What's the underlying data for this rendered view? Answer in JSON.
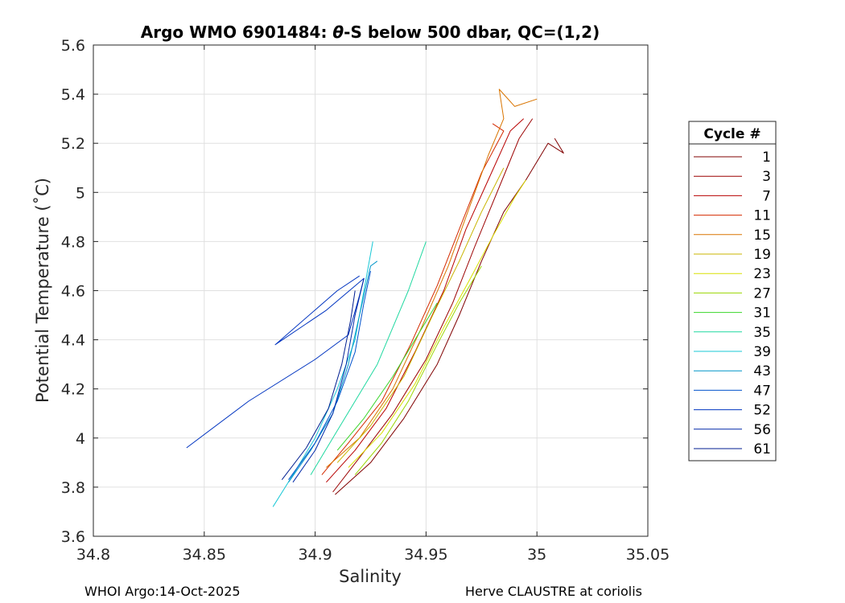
{
  "chart_data": {
    "type": "line",
    "title": "Argo WMO 6901484: θ-S below 500 dbar,  QC=(1,2)",
    "title_parts": {
      "prefix": "Argo WMO 6901484: ",
      "theta": "θ",
      "suffix": "-S below 500 dbar,  QC=(1,2)"
    },
    "xlabel": "Salinity",
    "ylabel": "Potential Temperature (˚C)",
    "xlim": [
      34.8,
      35.05
    ],
    "ylim": [
      3.6,
      5.6
    ],
    "xticks": [
      "34.8",
      "34.85",
      "34.9",
      "34.95",
      "35",
      "35.05"
    ],
    "xtick_values": [
      34.8,
      34.85,
      34.9,
      34.95,
      35.0,
      35.05
    ],
    "yticks": [
      "3.6",
      "3.8",
      "4",
      "4.2",
      "4.4",
      "4.6",
      "4.8",
      "5",
      "5.2",
      "5.4",
      "5.6"
    ],
    "ytick_values": [
      3.6,
      3.8,
      4.0,
      4.2,
      4.4,
      4.6,
      4.8,
      5.0,
      5.2,
      5.4,
      5.6
    ],
    "grid": true,
    "legend_title": "Cycle #",
    "legend_position": "outside-right",
    "series": [
      {
        "name": "1",
        "color": "#800000",
        "points": [
          [
            34.909,
            3.77
          ],
          [
            34.925,
            3.9
          ],
          [
            34.94,
            4.08
          ],
          [
            34.955,
            4.3
          ],
          [
            34.965,
            4.5
          ],
          [
            34.975,
            4.72
          ],
          [
            34.985,
            4.92
          ],
          [
            34.995,
            5.05
          ],
          [
            35.005,
            5.2
          ],
          [
            35.012,
            5.16
          ],
          [
            35.008,
            5.22
          ]
        ]
      },
      {
        "name": "3",
        "color": "#9b0000",
        "points": [
          [
            34.908,
            3.78
          ],
          [
            34.92,
            3.92
          ],
          [
            34.935,
            4.1
          ],
          [
            34.95,
            4.32
          ],
          [
            34.962,
            4.55
          ],
          [
            34.972,
            4.78
          ],
          [
            34.982,
            5.0
          ],
          [
            34.992,
            5.22
          ],
          [
            34.998,
            5.3
          ]
        ]
      },
      {
        "name": "7",
        "color": "#b80000",
        "points": [
          [
            34.905,
            3.82
          ],
          [
            34.918,
            3.95
          ],
          [
            34.932,
            4.12
          ],
          [
            34.945,
            4.35
          ],
          [
            34.958,
            4.6
          ],
          [
            34.968,
            4.85
          ],
          [
            34.978,
            5.05
          ],
          [
            34.988,
            5.25
          ],
          [
            34.994,
            5.3
          ]
        ]
      },
      {
        "name": "11",
        "color": "#d42a00",
        "points": [
          [
            34.903,
            3.85
          ],
          [
            34.915,
            3.98
          ],
          [
            34.93,
            4.15
          ],
          [
            34.943,
            4.38
          ],
          [
            34.955,
            4.62
          ],
          [
            34.965,
            4.85
          ],
          [
            34.975,
            5.08
          ],
          [
            34.985,
            5.25
          ],
          [
            34.98,
            5.28
          ]
        ]
      },
      {
        "name": "15",
        "color": "#d97400",
        "points": [
          [
            34.905,
            3.88
          ],
          [
            34.92,
            4.0
          ],
          [
            34.935,
            4.2
          ],
          [
            34.948,
            4.45
          ],
          [
            34.96,
            4.7
          ],
          [
            34.97,
            4.95
          ],
          [
            34.978,
            5.15
          ],
          [
            34.985,
            5.3
          ],
          [
            34.983,
            5.42
          ],
          [
            34.99,
            5.35
          ],
          [
            35.0,
            5.38
          ]
        ]
      },
      {
        "name": "19",
        "color": "#c9b400",
        "points": [
          [
            34.91,
            3.9
          ],
          [
            34.925,
            4.05
          ],
          [
            34.94,
            4.25
          ],
          [
            34.953,
            4.5
          ],
          [
            34.965,
            4.72
          ],
          [
            34.975,
            4.92
          ],
          [
            34.985,
            5.1
          ]
        ]
      },
      {
        "name": "23",
        "color": "#d8e000",
        "points": [
          [
            34.915,
            3.88
          ],
          [
            34.93,
            4.02
          ],
          [
            34.945,
            4.22
          ],
          [
            34.958,
            4.45
          ],
          [
            34.97,
            4.65
          ],
          [
            34.98,
            4.82
          ],
          [
            34.99,
            4.98
          ],
          [
            34.995,
            5.05
          ]
        ]
      },
      {
        "name": "27",
        "color": "#99d600",
        "points": [
          [
            34.918,
            3.85
          ],
          [
            34.93,
            3.98
          ],
          [
            34.942,
            4.15
          ],
          [
            34.955,
            4.38
          ],
          [
            34.965,
            4.55
          ],
          [
            34.975,
            4.7
          ]
        ]
      },
      {
        "name": "31",
        "color": "#3ad62a",
        "points": [
          [
            34.91,
            3.95
          ],
          [
            34.922,
            4.08
          ],
          [
            34.935,
            4.25
          ],
          [
            34.945,
            4.4
          ],
          [
            34.955,
            4.55
          ]
        ]
      },
      {
        "name": "35",
        "color": "#1fd8a0",
        "points": [
          [
            34.898,
            3.85
          ],
          [
            34.908,
            4.0
          ],
          [
            34.918,
            4.15
          ],
          [
            34.928,
            4.3
          ],
          [
            34.935,
            4.45
          ],
          [
            34.942,
            4.6
          ],
          [
            34.95,
            4.8
          ]
        ]
      },
      {
        "name": "39",
        "color": "#19c8d6",
        "points": [
          [
            34.881,
            3.72
          ],
          [
            34.89,
            3.85
          ],
          [
            34.9,
            4.0
          ],
          [
            34.91,
            4.2
          ],
          [
            34.918,
            4.4
          ],
          [
            34.922,
            4.6
          ],
          [
            34.926,
            4.8
          ]
        ]
      },
      {
        "name": "43",
        "color": "#0095c8",
        "points": [
          [
            34.888,
            3.82
          ],
          [
            34.898,
            3.95
          ],
          [
            34.908,
            4.1
          ],
          [
            34.915,
            4.3
          ],
          [
            34.92,
            4.5
          ],
          [
            34.925,
            4.7
          ],
          [
            34.928,
            4.72
          ]
        ]
      },
      {
        "name": "47",
        "color": "#0052cc",
        "points": [
          [
            34.888,
            3.83
          ],
          [
            34.9,
            3.98
          ],
          [
            34.91,
            4.15
          ],
          [
            34.918,
            4.35
          ],
          [
            34.922,
            4.55
          ],
          [
            34.925,
            4.68
          ]
        ]
      },
      {
        "name": "52",
        "color": "#0034c0",
        "points": [
          [
            34.842,
            3.96
          ],
          [
            34.87,
            4.15
          ],
          [
            34.9,
            4.32
          ],
          [
            34.915,
            4.42
          ],
          [
            34.92,
            4.58
          ],
          [
            34.922,
            4.65
          ],
          [
            34.905,
            4.52
          ],
          [
            34.882,
            4.38
          ],
          [
            34.91,
            4.6
          ],
          [
            34.92,
            4.66
          ]
        ]
      },
      {
        "name": "56",
        "color": "#0028a8",
        "points": [
          [
            34.89,
            3.82
          ],
          [
            34.9,
            3.95
          ],
          [
            34.908,
            4.1
          ],
          [
            34.914,
            4.3
          ],
          [
            34.918,
            4.5
          ],
          [
            34.922,
            4.65
          ]
        ]
      },
      {
        "name": "61",
        "color": "#001e90",
        "points": [
          [
            34.885,
            3.83
          ],
          [
            34.896,
            3.96
          ],
          [
            34.906,
            4.12
          ],
          [
            34.912,
            4.3
          ],
          [
            34.916,
            4.48
          ],
          [
            34.918,
            4.6
          ]
        ]
      }
    ]
  },
  "footer": {
    "left": "WHOI Argo:14-Oct-2025",
    "right": "Herve CLAUSTRE at coriolis"
  }
}
